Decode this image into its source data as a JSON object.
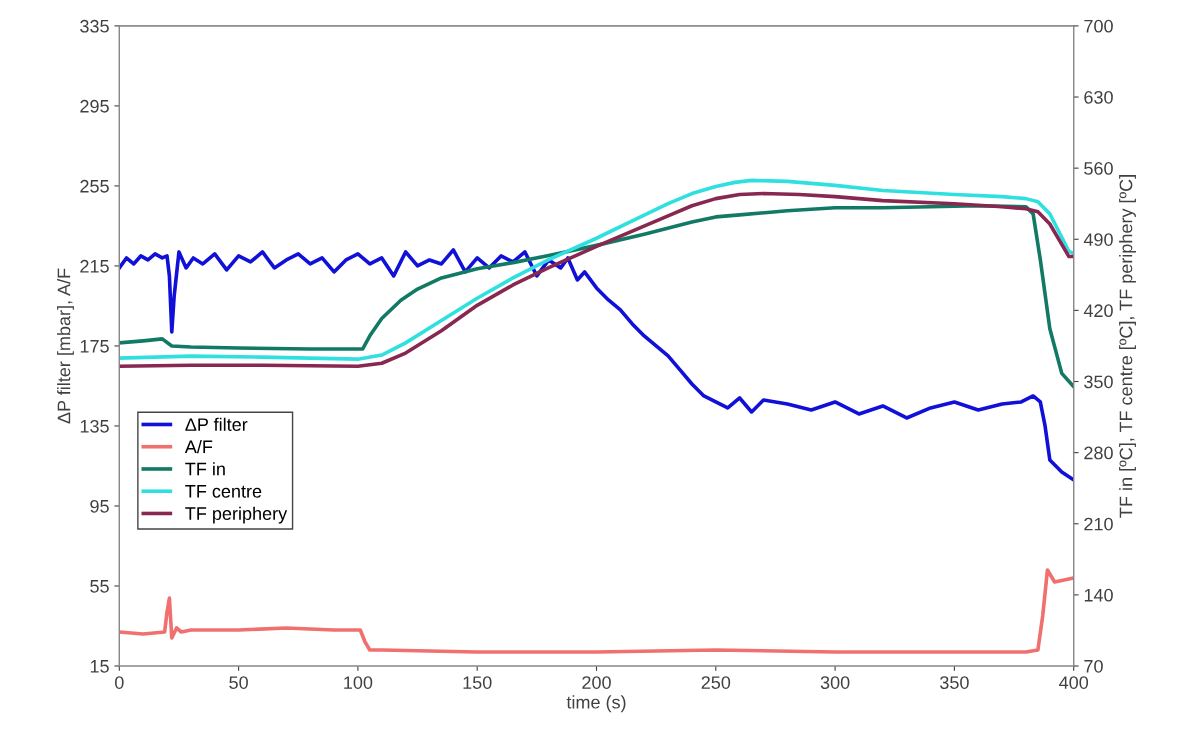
{
  "chart_data": {
    "type": "line",
    "xlabel": "time (s)",
    "ylabel": "ΔP filter [mbar], A/F",
    "y2label": "TF in [ºC], TF centre [ºC], TF periphery [ºC]",
    "xlim": [
      0,
      400
    ],
    "xticks": [
      0,
      50,
      100,
      150,
      200,
      250,
      300,
      350,
      400
    ],
    "ylim": [
      15,
      335
    ],
    "yticks": [
      15,
      55,
      95,
      135,
      175,
      215,
      255,
      295,
      335
    ],
    "y2lim": [
      70,
      700
    ],
    "y2ticks": [
      70,
      140,
      210,
      280,
      350,
      420,
      490,
      560,
      630,
      700
    ],
    "grid": false,
    "legend": "left",
    "marker": "none",
    "line_style": "solid",
    "series": [
      {
        "name": "ΔP filter",
        "color": "#1010d8",
        "axis": "y",
        "x": [
          0,
          3,
          6,
          9,
          12,
          15,
          18,
          20,
          21,
          22,
          23,
          25,
          28,
          31,
          35,
          40,
          45,
          50,
          55,
          60,
          65,
          70,
          75,
          80,
          85,
          90,
          95,
          100,
          105,
          110,
          115,
          120,
          125,
          130,
          135,
          140,
          145,
          150,
          155,
          160,
          165,
          170,
          175,
          180,
          185,
          188,
          192,
          195,
          200,
          205,
          210,
          215,
          220,
          225,
          230,
          235,
          240,
          245,
          250,
          255,
          260,
          265,
          270,
          280,
          290,
          300,
          310,
          320,
          330,
          340,
          350,
          360,
          370,
          378,
          383,
          386,
          388,
          390,
          395,
          400
        ],
        "values": [
          214,
          219,
          216,
          220,
          218,
          221,
          219,
          220,
          210,
          182,
          200,
          222,
          214,
          219,
          216,
          221,
          213,
          220,
          217,
          222,
          214,
          218,
          221,
          216,
          219,
          212,
          218,
          221,
          216,
          219,
          210,
          222,
          215,
          218,
          216,
          223,
          212,
          219,
          214,
          220,
          217,
          222,
          210,
          218,
          214,
          219,
          208,
          212,
          204,
          198,
          193,
          186,
          180,
          175,
          170,
          163,
          156,
          150,
          147,
          144,
          149,
          142,
          148,
          146,
          143,
          147,
          141,
          145,
          139,
          144,
          147,
          143,
          146,
          147,
          150,
          147,
          135,
          118,
          112,
          108
        ]
      },
      {
        "name": "A/F",
        "color": "#f07070",
        "axis": "y",
        "x": [
          0,
          10,
          19,
          20,
          21,
          22,
          24,
          26,
          30,
          50,
          70,
          90,
          101,
          103,
          105,
          110,
          150,
          200,
          250,
          300,
          350,
          380,
          385,
          387,
          389,
          392,
          396,
          400
        ],
        "values": [
          32,
          31,
          32,
          42,
          49,
          29,
          34,
          32,
          33,
          33,
          34,
          33,
          33,
          27,
          23,
          23,
          22,
          22,
          23,
          22,
          22,
          22,
          23,
          40,
          63,
          57,
          58,
          59
        ]
      },
      {
        "name": "TF in",
        "color": "#127a64",
        "axis": "y2",
        "x": [
          0,
          10,
          18,
          22,
          30,
          50,
          80,
          102,
          105,
          110,
          118,
          125,
          135,
          150,
          165,
          180,
          200,
          220,
          240,
          250,
          260,
          280,
          300,
          320,
          340,
          360,
          380,
          383,
          386,
          390,
          395,
          400
        ],
        "values": [
          388,
          390,
          392,
          385,
          384,
          383,
          382,
          382,
          395,
          412,
          430,
          441,
          452,
          461,
          467,
          474,
          484,
          495,
          507,
          512,
          514,
          518,
          521,
          521,
          522,
          523,
          522,
          515,
          470,
          402,
          358,
          345
        ]
      },
      {
        "name": "TF centre",
        "color": "#30e0e0",
        "axis": "y2",
        "x": [
          0,
          30,
          60,
          100,
          110,
          120,
          135,
          150,
          165,
          180,
          200,
          215,
          230,
          240,
          250,
          258,
          265,
          280,
          300,
          320,
          350,
          370,
          380,
          385,
          390,
          395,
          398,
          400
        ],
        "values": [
          373,
          375,
          374,
          372,
          376,
          388,
          410,
          432,
          452,
          470,
          491,
          508,
          525,
          535,
          542,
          546,
          548,
          547,
          543,
          538,
          534,
          532,
          530,
          527,
          515,
          492,
          478,
          476
        ]
      },
      {
        "name": "TF periphery",
        "color": "#882850",
        "axis": "y2",
        "x": [
          0,
          30,
          60,
          100,
          110,
          120,
          135,
          150,
          165,
          180,
          200,
          215,
          230,
          240,
          250,
          260,
          270,
          285,
          300,
          320,
          350,
          370,
          380,
          385,
          390,
          395,
          398,
          400
        ],
        "values": [
          365,
          366,
          366,
          365,
          368,
          378,
          400,
          425,
          445,
          462,
          483,
          498,
          513,
          523,
          530,
          534,
          535,
          534,
          532,
          528,
          525,
          522,
          520,
          517,
          505,
          485,
          473,
          473
        ]
      }
    ]
  }
}
